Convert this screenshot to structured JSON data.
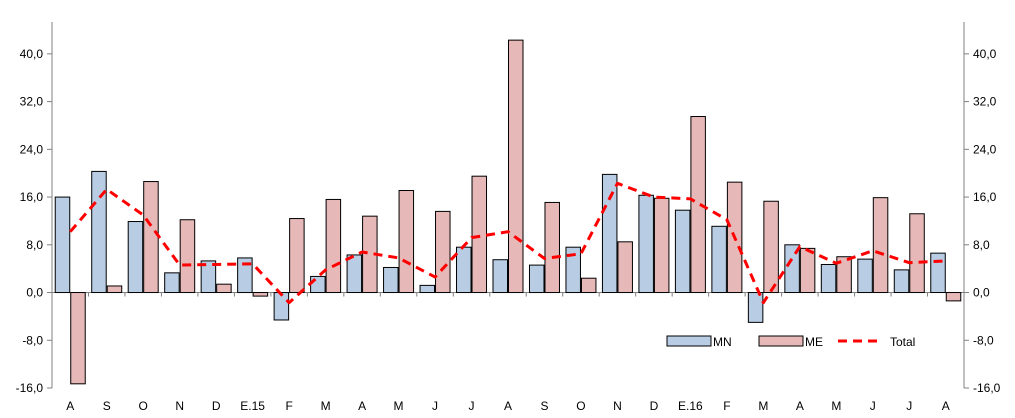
{
  "chart_data": {
    "type": "bar",
    "categories": [
      "A",
      "S",
      "O",
      "N",
      "D",
      "E.15",
      "F",
      "M",
      "A",
      "M",
      "J",
      "J",
      "A",
      "S",
      "O",
      "N",
      "D",
      "E.16",
      "F",
      "M",
      "A",
      "M",
      "J",
      "J",
      "A"
    ],
    "series": [
      {
        "name": "MN",
        "kind": "bar",
        "color": "#b8cce4",
        "values": [
          16.0,
          20.3,
          11.9,
          3.3,
          5.3,
          5.8,
          -4.6,
          2.7,
          6.3,
          4.2,
          1.2,
          7.6,
          5.5,
          4.6,
          7.6,
          19.8,
          16.3,
          13.8,
          11.1,
          -5.0,
          8.0,
          4.7,
          5.6,
          3.8,
          6.6
        ]
      },
      {
        "name": "ME",
        "kind": "bar",
        "color": "#e6b9b8",
        "values": [
          -15.3,
          1.1,
          18.6,
          12.2,
          1.4,
          -0.6,
          12.4,
          15.6,
          12.8,
          17.1,
          13.6,
          19.5,
          42.3,
          15.1,
          2.4,
          8.5,
          15.8,
          29.5,
          18.5,
          15.3,
          7.4,
          6.0,
          15.9,
          13.2,
          -1.4
        ]
      },
      {
        "name": "Total",
        "kind": "line",
        "color": "#ff0000",
        "values": [
          10.2,
          17.3,
          13.0,
          4.6,
          4.7,
          4.8,
          -1.7,
          3.8,
          6.8,
          5.8,
          2.6,
          9.2,
          10.2,
          5.7,
          6.5,
          18.3,
          16.0,
          15.7,
          12.2,
          -1.7,
          7.7,
          4.9,
          7.0,
          5.0,
          5.3
        ]
      }
    ],
    "y_ticks": [
      "-16,0",
      "-8,0",
      "0,0",
      "8,0",
      "16,0",
      "24,0",
      "32,0",
      "40,0"
    ],
    "y_tick_values": [
      -16,
      -8,
      0,
      8,
      16,
      24,
      32,
      40
    ],
    "ylim": [
      -16,
      44
    ],
    "legend_placement": "bottom-right",
    "grid": false,
    "colors": {
      "bar_stroke": "#000000",
      "axis": "#808080"
    }
  }
}
